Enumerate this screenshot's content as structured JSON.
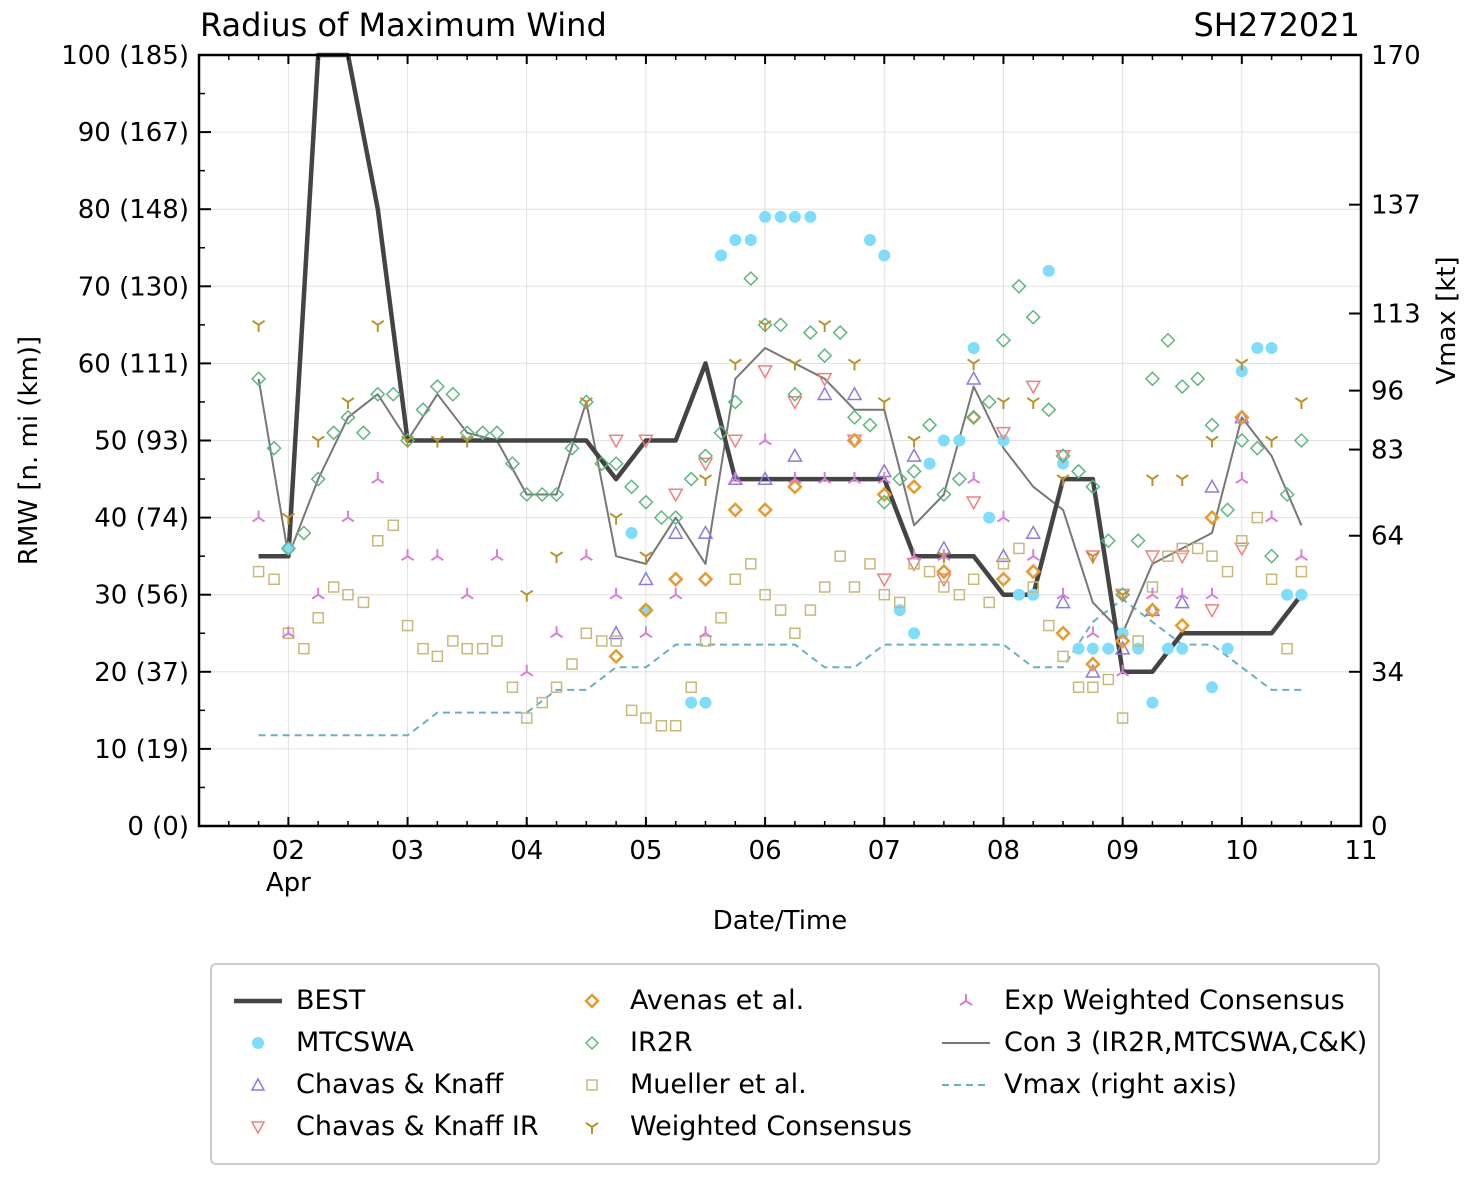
{
  "titles": {
    "left": "Radius of Maximum Wind",
    "right": "SH272021"
  },
  "colors": {
    "best": "#444444",
    "mtcswa": "#7fdcfa",
    "ck": "#8a7be0",
    "ckir": "#f0807f",
    "avenas": "#e89a2c",
    "ir2r": "#5fb77e",
    "mueller": "#c8b87a",
    "wc": "#b8922a",
    "ewc": "#d77fd7",
    "con3": "#777777",
    "vmax": "#6ab0c4",
    "grid": "#e0e0e0"
  },
  "legend": [
    {
      "key": "best",
      "label": "BEST",
      "icon": "thick-line-icon"
    },
    {
      "key": "mtcswa",
      "label": "MTCSWA",
      "icon": "filled-circle-icon"
    },
    {
      "key": "ck",
      "label": "Chavas & Knaff",
      "icon": "triangle-up-icon"
    },
    {
      "key": "ckir",
      "label": "Chavas & Knaff IR",
      "icon": "triangle-down-icon"
    },
    {
      "key": "avenas",
      "label": "Avenas et al.",
      "icon": "thick-diamond-icon"
    },
    {
      "key": "ir2r",
      "label": "IR2R",
      "icon": "diamond-icon"
    },
    {
      "key": "mueller",
      "label": "Mueller et al.",
      "icon": "square-icon"
    },
    {
      "key": "wc",
      "label": "Weighted Consensus",
      "icon": "tri-down-icon"
    },
    {
      "key": "ewc",
      "label": "Exp Weighted Consensus",
      "icon": "tri-up-icon"
    },
    {
      "key": "con3",
      "label": "Con 3 (IR2R,MTCSWA,C&K)",
      "icon": "thin-line-icon"
    },
    {
      "key": "vmax",
      "label": "Vmax (right axis)",
      "icon": "dashed-line-icon"
    }
  ],
  "chart_data": {
    "type": "line",
    "title": "Radius of Maximum Wind",
    "subtitle": "SH272021",
    "xlabel": "Date/Time",
    "ylabel": "RMW [n. mi (km)]",
    "y2label": "Vmax [kt]",
    "xlim": [
      1.25,
      11.0
    ],
    "ylim": [
      0,
      100
    ],
    "y2lim": [
      0,
      170
    ],
    "x_ticks": [
      2,
      3,
      4,
      5,
      6,
      7,
      8,
      9,
      10,
      11
    ],
    "x_tick_labels": [
      "02",
      "03",
      "04",
      "05",
      "06",
      "07",
      "08",
      "09",
      "10",
      "11"
    ],
    "x_month_label": "Apr",
    "y_ticks": [
      0,
      10,
      20,
      30,
      40,
      50,
      60,
      70,
      80,
      90,
      100
    ],
    "y_tick_labels": [
      "0 (0)",
      "10 (19)",
      "20 (37)",
      "30 (56)",
      "40 (74)",
      "50 (93)",
      "60 (111)",
      "70 (130)",
      "80 (148)",
      "90 (167)",
      "100 (185)"
    ],
    "y2_ticks": [
      0,
      34,
      64,
      83,
      96,
      113,
      137,
      170
    ],
    "y2_tick_labels": [
      "0",
      "34",
      "64",
      "83",
      "96",
      "113",
      "137",
      "170"
    ],
    "grid": true,
    "legend_position": "bottom",
    "series": [
      {
        "key": "vmax",
        "name": "Vmax (right axis)",
        "style": "dashed",
        "axis": "right",
        "x": [
          1.75,
          2.0,
          2.25,
          2.5,
          2.75,
          3.0,
          3.25,
          3.5,
          3.75,
          4.0,
          4.25,
          4.5,
          4.75,
          5.0,
          5.25,
          5.5,
          5.75,
          6.0,
          6.25,
          6.5,
          6.75,
          7.0,
          7.25,
          7.5,
          7.75,
          8.0,
          8.25,
          8.5,
          8.75,
          9.0,
          9.25,
          9.5,
          9.75,
          10.0,
          10.25,
          10.5
        ],
        "y": [
          20,
          20,
          20,
          20,
          20,
          20,
          25,
          25,
          25,
          25,
          30,
          30,
          35,
          35,
          40,
          40,
          40,
          40,
          40,
          35,
          35,
          40,
          40,
          40,
          40,
          40,
          35,
          35,
          45,
          50,
          45,
          40,
          40,
          35,
          30,
          30
        ]
      },
      {
        "key": "con3",
        "name": "Con 3 (IR2R,MTCSWA,C&K)",
        "style": "thin-line",
        "x": [
          1.75,
          2.0,
          2.25,
          2.5,
          2.75,
          3.0,
          3.25,
          3.5,
          3.75,
          4.0,
          4.25,
          4.5,
          4.75,
          5.0,
          5.25,
          5.5,
          5.75,
          6.0,
          6.25,
          6.5,
          6.75,
          7.0,
          7.25,
          7.5,
          7.75,
          8.0,
          8.25,
          8.5,
          8.75,
          9.0,
          9.25,
          9.5,
          9.75,
          10.0,
          10.25,
          10.5
        ],
        "y": [
          58,
          35,
          45,
          53,
          56,
          50,
          56,
          51,
          50,
          43,
          43,
          55,
          35,
          34,
          40,
          34,
          58,
          62,
          60,
          58,
          54,
          54,
          39,
          43,
          57,
          49,
          44,
          41,
          29,
          25,
          34,
          36,
          38,
          53,
          48,
          39
        ]
      },
      {
        "key": "best",
        "name": "BEST",
        "style": "thick-line",
        "x": [
          1.75,
          2.0,
          2.25,
          2.5,
          2.75,
          3.0,
          3.25,
          3.5,
          3.75,
          4.0,
          4.25,
          4.5,
          4.75,
          5.0,
          5.25,
          5.5,
          5.75,
          6.0,
          6.25,
          6.5,
          6.75,
          7.0,
          7.25,
          7.5,
          7.75,
          8.0,
          8.25,
          8.5,
          8.75,
          9.0,
          9.25,
          9.5,
          9.75,
          10.0,
          10.25,
          10.5
        ],
        "y": [
          35,
          35,
          100,
          100,
          80,
          50,
          50,
          50,
          50,
          50,
          50,
          50,
          45,
          50,
          50,
          60,
          45,
          45,
          45,
          45,
          45,
          45,
          35,
          35,
          35,
          30,
          30,
          45,
          45,
          20,
          20,
          25,
          25,
          25,
          25,
          30
        ]
      },
      {
        "key": "mtcswa",
        "name": "MTCSWA",
        "style": "filled-circle",
        "x": [
          2.0,
          4.88,
          5.0,
          5.38,
          5.5,
          5.63,
          5.75,
          5.88,
          6.0,
          6.13,
          6.25,
          6.38,
          6.88,
          7.0,
          7.13,
          7.25,
          7.38,
          7.5,
          7.63,
          7.75,
          7.88,
          8.0,
          8.13,
          8.25,
          8.38,
          8.5,
          8.63,
          8.75,
          8.88,
          9.0,
          9.13,
          9.25,
          9.38,
          9.5,
          9.75,
          9.88,
          10.0,
          10.13,
          10.25,
          10.38,
          10.5
        ],
        "y": [
          36,
          38,
          28,
          16,
          16,
          74,
          76,
          76,
          79,
          79,
          79,
          79,
          76,
          74,
          28,
          25,
          47,
          50,
          50,
          62,
          40,
          50,
          30,
          30,
          72,
          47,
          23,
          23,
          23,
          25,
          23,
          16,
          23,
          23,
          18,
          23,
          59,
          62,
          62,
          30,
          30
        ]
      },
      {
        "key": "ck",
        "name": "Chavas & Knaff",
        "style": "triangle-up",
        "x": [
          4.75,
          5.0,
          5.25,
          5.5,
          5.75,
          6.0,
          6.25,
          6.5,
          6.75,
          7.0,
          7.25,
          7.5,
          7.75,
          8.0,
          8.25,
          8.5,
          8.75,
          9.0,
          9.25,
          9.5,
          9.75,
          10.0
        ],
        "y": [
          25,
          32,
          38,
          38,
          45,
          45,
          48,
          56,
          56,
          46,
          48,
          36,
          58,
          35,
          38,
          29,
          20,
          23,
          28,
          29,
          44,
          53
        ]
      },
      {
        "key": "ckir",
        "name": "Chavas & Knaff IR",
        "style": "triangle-down",
        "x": [
          4.75,
          5.0,
          5.25,
          5.5,
          5.75,
          6.0,
          6.25,
          6.5,
          6.75,
          7.0,
          7.25,
          7.5,
          7.75,
          8.0,
          8.25,
          8.5,
          8.75,
          9.0,
          9.25,
          9.5,
          9.75,
          10.0
        ],
        "y": [
          50,
          50,
          43,
          47,
          50,
          59,
          55,
          58,
          50,
          32,
          34,
          32,
          42,
          51,
          57,
          48,
          35,
          30,
          35,
          35,
          28,
          36
        ]
      },
      {
        "key": "avenas",
        "name": "Avenas et al.",
        "style": "thick-diamond",
        "x": [
          4.75,
          5.0,
          5.25,
          5.5,
          5.75,
          6.0,
          6.25,
          6.75,
          7.0,
          7.25,
          7.5,
          7.75,
          8.0,
          8.25,
          8.5,
          8.75,
          9.0,
          9.25,
          9.5,
          9.75,
          10.0
        ],
        "y": [
          22,
          28,
          32,
          32,
          41,
          41,
          44,
          50,
          43,
          44,
          33,
          53,
          32,
          33,
          25,
          21,
          24,
          28,
          26,
          40,
          53
        ]
      },
      {
        "key": "ir2r",
        "name": "IR2R",
        "style": "diamond",
        "x": [
          1.75,
          1.88,
          2.0,
          2.13,
          2.25,
          2.38,
          2.5,
          2.63,
          2.75,
          2.88,
          3.0,
          3.13,
          3.25,
          3.38,
          3.5,
          3.63,
          3.75,
          3.88,
          4.0,
          4.13,
          4.25,
          4.38,
          4.5,
          4.63,
          4.75,
          4.88,
          5.0,
          5.13,
          5.25,
          5.38,
          5.5,
          5.63,
          5.75,
          5.88,
          6.0,
          6.13,
          6.25,
          6.38,
          6.5,
          6.63,
          6.75,
          6.88,
          7.0,
          7.13,
          7.25,
          7.38,
          7.5,
          7.63,
          7.75,
          7.88,
          8.0,
          8.13,
          8.25,
          8.38,
          8.5,
          8.63,
          8.75,
          8.88,
          9.0,
          9.13,
          9.25,
          9.38,
          9.5,
          9.63,
          9.75,
          9.88,
          10.0,
          10.13,
          10.25,
          10.38,
          10.5
        ],
        "y": [
          58,
          49,
          36,
          38,
          45,
          51,
          53,
          51,
          56,
          56,
          50,
          54,
          57,
          56,
          51,
          51,
          51,
          47,
          43,
          43,
          43,
          49,
          55,
          47,
          47,
          44,
          42,
          40,
          40,
          45,
          48,
          51,
          55,
          71,
          65,
          65,
          56,
          64,
          61,
          64,
          53,
          52,
          42,
          45,
          46,
          52,
          43,
          45,
          53,
          55,
          63,
          70,
          66,
          54,
          48,
          46,
          44,
          37,
          30,
          37,
          58,
          63,
          57,
          58,
          52,
          41,
          50,
          49,
          35,
          43,
          50
        ]
      },
      {
        "key": "mueller",
        "name": "Mueller et al.",
        "style": "square",
        "x": [
          1.75,
          1.88,
          2.0,
          2.13,
          2.25,
          2.38,
          2.5,
          2.63,
          2.75,
          2.88,
          3.0,
          3.13,
          3.25,
          3.38,
          3.5,
          3.63,
          3.75,
          3.88,
          4.0,
          4.13,
          4.25,
          4.38,
          4.5,
          4.63,
          4.75,
          4.88,
          5.0,
          5.13,
          5.25,
          5.38,
          5.5,
          5.63,
          5.75,
          5.88,
          6.0,
          6.13,
          6.25,
          6.38,
          6.5,
          6.63,
          6.75,
          6.88,
          7.0,
          7.13,
          7.25,
          7.38,
          7.5,
          7.63,
          7.75,
          7.88,
          8.0,
          8.13,
          8.25,
          8.38,
          8.5,
          8.63,
          8.75,
          8.88,
          9.0,
          9.13,
          9.25,
          9.38,
          9.5,
          9.63,
          9.75,
          9.88,
          10.0,
          10.13,
          10.25,
          10.38,
          10.5
        ],
        "y": [
          33,
          32,
          25,
          23,
          27,
          31,
          30,
          29,
          37,
          39,
          26,
          23,
          22,
          24,
          23,
          23,
          24,
          18,
          14,
          16,
          18,
          21,
          25,
          24,
          24,
          15,
          14,
          13,
          13,
          18,
          24,
          27,
          32,
          34,
          30,
          28,
          25,
          28,
          31,
          35,
          31,
          34,
          30,
          29,
          34,
          33,
          31,
          30,
          32,
          29,
          34,
          36,
          31,
          26,
          22,
          18,
          18,
          19,
          14,
          24,
          31,
          35,
          36,
          36,
          35,
          33,
          37,
          40,
          32,
          23,
          33
        ]
      },
      {
        "key": "wc",
        "name": "Weighted Consensus",
        "style": "tri-down",
        "x": [
          1.75,
          2.0,
          2.25,
          2.5,
          2.75,
          3.0,
          3.25,
          3.5,
          4.0,
          4.25,
          4.5,
          4.75,
          5.0,
          5.5,
          5.75,
          6.0,
          6.25,
          6.5,
          6.75,
          7.0,
          7.25,
          7.5,
          7.75,
          8.0,
          8.25,
          8.5,
          8.75,
          9.0,
          9.25,
          9.5,
          9.75,
          10.0,
          10.25,
          10.5
        ],
        "y": [
          65,
          40,
          50,
          55,
          65,
          50,
          50,
          50,
          30,
          35,
          55,
          40,
          35,
          45,
          60,
          65,
          60,
          65,
          60,
          55,
          50,
          35,
          60,
          55,
          55,
          45,
          35,
          30,
          45,
          45,
          50,
          60,
          50,
          55
        ]
      },
      {
        "key": "ewc",
        "name": "Exp Weighted Consensus",
        "style": "tri-up",
        "x": [
          1.75,
          2.0,
          2.25,
          2.5,
          2.75,
          3.0,
          3.25,
          3.5,
          3.75,
          4.0,
          4.25,
          4.5,
          4.75,
          5.0,
          5.25,
          5.5,
          5.75,
          6.0,
          6.25,
          6.5,
          6.75,
          7.0,
          7.25,
          7.5,
          7.75,
          8.0,
          8.25,
          8.5,
          8.75,
          9.0,
          9.25,
          9.5,
          9.75,
          10.0,
          10.25,
          10.5
        ],
        "y": [
          40,
          25,
          30,
          40,
          45,
          35,
          35,
          30,
          35,
          20,
          25,
          35,
          30,
          25,
          30,
          25,
          45,
          50,
          45,
          45,
          45,
          45,
          35,
          35,
          45,
          40,
          35,
          30,
          25,
          20,
          30,
          30,
          30,
          45,
          40,
          35
        ]
      }
    ]
  }
}
